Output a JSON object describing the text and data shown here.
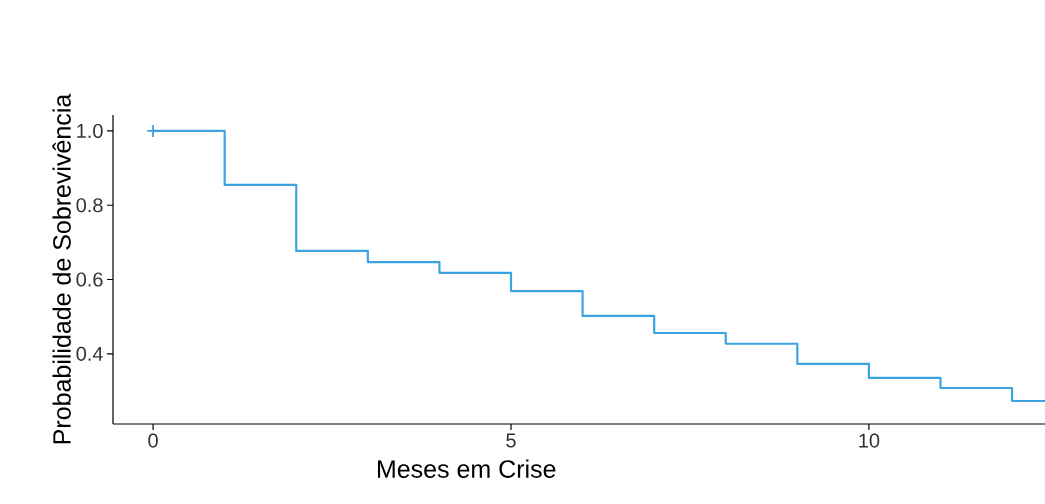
{
  "chart_data": {
    "type": "step",
    "xlabel": "Meses em Crise",
    "ylabel": "Probabilidade de Sobrevivência",
    "series": [
      {
        "color": "#3ba3e0",
        "x": [
          0,
          1,
          2,
          3,
          4,
          5,
          6,
          7,
          8,
          9,
          10,
          11,
          12,
          12.46
        ],
        "values": [
          1.0,
          0.855,
          0.677,
          0.647,
          0.618,
          0.569,
          0.502,
          0.456,
          0.427,
          0.373,
          0.335,
          0.308,
          0.273,
          0.273
        ]
      },
      {
        "type": "scatter",
        "color": "#3ba3e0",
        "marker": "cross",
        "x": [
          0
        ],
        "values": [
          1.0
        ]
      }
    ],
    "xlim": [
      -0.56,
      12.46
    ],
    "ylim": [
      0.211,
      1.043
    ],
    "xticks": [
      0,
      5,
      10
    ],
    "yticks": [
      0.4,
      0.6,
      0.8,
      {
        "value": 1.0,
        "label": "1.0"
      }
    ],
    "grid": false
  }
}
